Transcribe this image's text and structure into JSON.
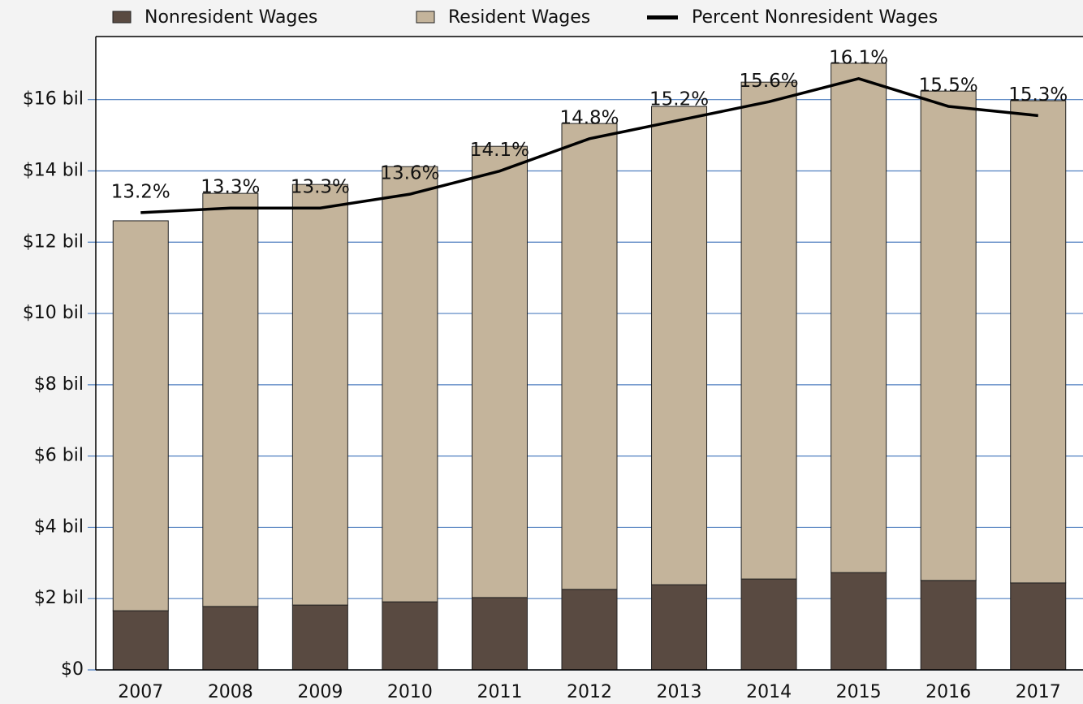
{
  "chart_data": {
    "type": "bar",
    "categories": [
      "2007",
      "2008",
      "2009",
      "2010",
      "2011",
      "2012",
      "2013",
      "2014",
      "2015",
      "2016",
      "2017"
    ],
    "series": [
      {
        "name": "Nonresident Wages",
        "color": "#594a41",
        "stacked": true,
        "values": [
          1.66,
          1.78,
          1.82,
          1.91,
          2.03,
          2.26,
          2.39,
          2.55,
          2.73,
          2.51,
          2.44
        ]
      },
      {
        "name": "Resident Wages",
        "color": "#c4b49b",
        "stacked": true,
        "values": [
          10.94,
          11.59,
          11.8,
          12.21,
          12.66,
          13.07,
          13.42,
          13.94,
          14.29,
          13.73,
          13.53
        ]
      },
      {
        "name": "Percent Nonresident Wages",
        "color": "#000000",
        "type": "line",
        "axis": "y2",
        "values": [
          13.2,
          13.3,
          13.3,
          13.6,
          14.1,
          14.8,
          15.2,
          15.6,
          16.1,
          15.5,
          15.3
        ],
        "value_labels": [
          "13.2%",
          "13.3%",
          "13.3%",
          "13.6%",
          "14.1%",
          "14.8%",
          "15.2%",
          "15.6%",
          "16.1%",
          "15.5%",
          "15.3%"
        ]
      }
    ],
    "ylim": [
      0,
      17.77
    ],
    "yticks": [
      {
        "value": 0,
        "label": "$0"
      },
      {
        "value": 2,
        "label": "$2 bil"
      },
      {
        "value": 4,
        "label": "$4 bil"
      },
      {
        "value": 6,
        "label": "$6 bil"
      },
      {
        "value": 8,
        "label": "$8 bil"
      },
      {
        "value": 10,
        "label": "$10 bil"
      },
      {
        "value": 12,
        "label": "$12 bil"
      },
      {
        "value": 14,
        "label": "$14 bil"
      },
      {
        "value": 16,
        "label": "$16 bil"
      }
    ],
    "y2lim": [
      3.31,
      17.01
    ],
    "grid": true,
    "legend": "top"
  }
}
